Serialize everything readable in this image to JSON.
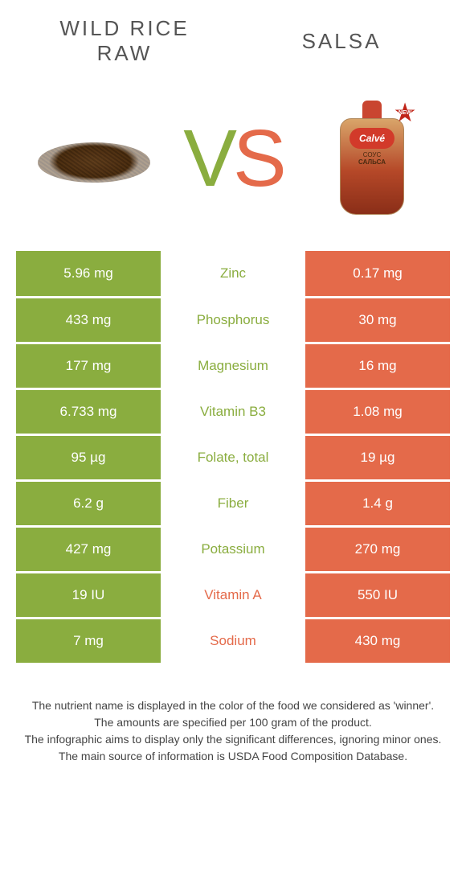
{
  "colors": {
    "left": "#8aad3f",
    "right": "#e46a4a",
    "background": "#ffffff"
  },
  "header": {
    "left_title_line1": "WILD RICE",
    "left_title_line2": "RAW",
    "right_title": "SALSA",
    "vs_v": "V",
    "vs_s": "S",
    "pack_logo": "Calvé",
    "pack_label_1": "СОУС",
    "pack_label_2": "САЛЬСА",
    "new_badge": "NEW"
  },
  "rows": [
    {
      "nutrient": "Zinc",
      "left": "5.96 mg",
      "right": "0.17 mg",
      "winner": "left"
    },
    {
      "nutrient": "Phosphorus",
      "left": "433 mg",
      "right": "30 mg",
      "winner": "left"
    },
    {
      "nutrient": "Magnesium",
      "left": "177 mg",
      "right": "16 mg",
      "winner": "left"
    },
    {
      "nutrient": "Vitamin B3",
      "left": "6.733 mg",
      "right": "1.08 mg",
      "winner": "left"
    },
    {
      "nutrient": "Folate, total",
      "left": "95 µg",
      "right": "19 µg",
      "winner": "left"
    },
    {
      "nutrient": "Fiber",
      "left": "6.2 g",
      "right": "1.4 g",
      "winner": "left"
    },
    {
      "nutrient": "Potassium",
      "left": "427 mg",
      "right": "270 mg",
      "winner": "left"
    },
    {
      "nutrient": "Vitamin A",
      "left": "19 IU",
      "right": "550 IU",
      "winner": "right"
    },
    {
      "nutrient": "Sodium",
      "left": "7 mg",
      "right": "430 mg",
      "winner": "right"
    }
  ],
  "footer": {
    "line1": "The nutrient name is displayed in the color of the food we considered as 'winner'.",
    "line2": "The amounts are specified per 100 gram of the product.",
    "line3": "The infographic aims to display only the significant differences, ignoring minor ones.",
    "line4": "The main source of information is USDA Food Composition Database."
  }
}
